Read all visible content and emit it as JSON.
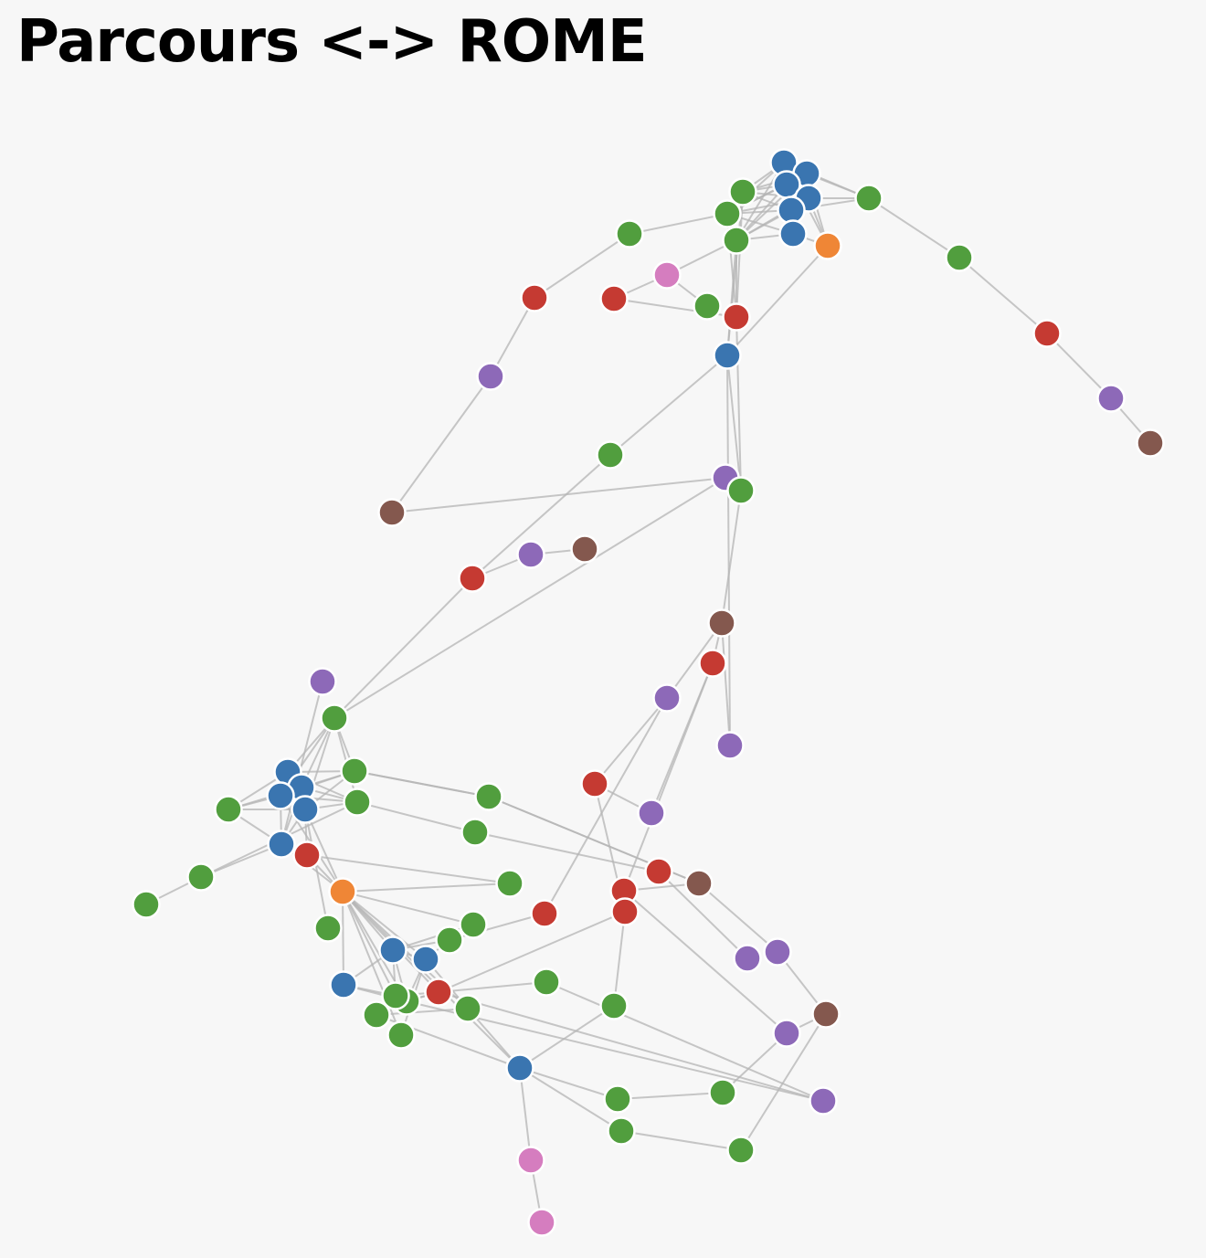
{
  "title": "Parcours <-> ROME",
  "palette": {
    "blue": "#3a75b0",
    "green": "#519e3e",
    "red": "#c53a32",
    "purple": "#8d69b8",
    "brown": "#84584e",
    "orange": "#ef8636",
    "pink": "#d57dbf"
  },
  "graph": {
    "nodes": [
      {
        "id": "n0",
        "color": "blue"
      },
      {
        "id": "n1",
        "color": "blue"
      },
      {
        "id": "n2",
        "color": "blue"
      },
      {
        "id": "n3",
        "color": "blue"
      },
      {
        "id": "n4",
        "color": "blue"
      },
      {
        "id": "n5",
        "color": "blue"
      },
      {
        "id": "n6",
        "color": "green"
      },
      {
        "id": "n7",
        "color": "green"
      },
      {
        "id": "n8",
        "color": "green"
      },
      {
        "id": "n9",
        "color": "orange"
      },
      {
        "id": "n10",
        "color": "green"
      },
      {
        "id": "n11",
        "color": "green"
      },
      {
        "id": "n12",
        "color": "red"
      },
      {
        "id": "n13",
        "color": "purple"
      },
      {
        "id": "n14",
        "color": "brown"
      },
      {
        "id": "n15",
        "color": "green"
      },
      {
        "id": "n16",
        "color": "pink"
      },
      {
        "id": "n17",
        "color": "red"
      },
      {
        "id": "n18",
        "color": "red"
      },
      {
        "id": "n19",
        "color": "purple"
      },
      {
        "id": "n20",
        "color": "green"
      },
      {
        "id": "n21",
        "color": "red"
      },
      {
        "id": "n22",
        "color": "blue"
      },
      {
        "id": "n23",
        "color": "green"
      },
      {
        "id": "n24",
        "color": "purple"
      },
      {
        "id": "n25",
        "color": "brown"
      },
      {
        "id": "n26",
        "color": "red"
      },
      {
        "id": "n27",
        "color": "purple"
      },
      {
        "id": "n28",
        "color": "brown"
      },
      {
        "id": "n29",
        "color": "green"
      },
      {
        "id": "n30",
        "color": "purple"
      },
      {
        "id": "n31",
        "color": "brown"
      },
      {
        "id": "n32",
        "color": "red"
      },
      {
        "id": "n33",
        "color": "purple"
      },
      {
        "id": "n34",
        "color": "purple"
      },
      {
        "id": "n35",
        "color": "green"
      },
      {
        "id": "n36",
        "color": "blue"
      },
      {
        "id": "n37",
        "color": "blue"
      },
      {
        "id": "n38",
        "color": "blue"
      },
      {
        "id": "n39",
        "color": "blue"
      },
      {
        "id": "n40",
        "color": "green"
      },
      {
        "id": "n41",
        "color": "green"
      },
      {
        "id": "n42",
        "color": "blue"
      },
      {
        "id": "n43",
        "color": "green"
      },
      {
        "id": "n44",
        "color": "green"
      },
      {
        "id": "n45",
        "color": "green"
      },
      {
        "id": "n46",
        "color": "red"
      },
      {
        "id": "n47",
        "color": "purple"
      },
      {
        "id": "n48",
        "color": "green"
      },
      {
        "id": "n49",
        "color": "green"
      },
      {
        "id": "n50",
        "color": "orange"
      },
      {
        "id": "n51",
        "color": "green"
      },
      {
        "id": "n52",
        "color": "red"
      },
      {
        "id": "n53",
        "color": "red"
      },
      {
        "id": "n54",
        "color": "red"
      },
      {
        "id": "n55",
        "color": "red"
      },
      {
        "id": "n56",
        "color": "brown"
      },
      {
        "id": "n57",
        "color": "green"
      },
      {
        "id": "n58",
        "color": "green"
      },
      {
        "id": "n59",
        "color": "green"
      },
      {
        "id": "n60",
        "color": "blue"
      },
      {
        "id": "n61",
        "color": "blue"
      },
      {
        "id": "n62",
        "color": "red"
      },
      {
        "id": "n63",
        "color": "purple"
      },
      {
        "id": "n64",
        "color": "purple"
      },
      {
        "id": "n65",
        "color": "purple"
      },
      {
        "id": "n66",
        "color": "brown"
      },
      {
        "id": "n67",
        "color": "blue"
      },
      {
        "id": "n68",
        "color": "green"
      },
      {
        "id": "n69",
        "color": "green"
      },
      {
        "id": "n70",
        "color": "green"
      },
      {
        "id": "n71",
        "color": "green"
      },
      {
        "id": "n72",
        "color": "green"
      },
      {
        "id": "n73",
        "color": "green"
      },
      {
        "id": "n74",
        "color": "red"
      },
      {
        "id": "n75",
        "color": "red"
      },
      {
        "id": "n76",
        "color": "purple"
      },
      {
        "id": "n77",
        "color": "green"
      },
      {
        "id": "n78",
        "color": "blue"
      },
      {
        "id": "n79",
        "color": "green"
      },
      {
        "id": "n80",
        "color": "green"
      },
      {
        "id": "n81",
        "color": "green"
      },
      {
        "id": "n82",
        "color": "green"
      },
      {
        "id": "n83",
        "color": "red"
      },
      {
        "id": "n84",
        "color": "pink"
      }
    ],
    "links": [
      [
        "n0",
        "n1"
      ],
      [
        "n0",
        "n2"
      ],
      [
        "n0",
        "n3"
      ],
      [
        "n0",
        "n4"
      ],
      [
        "n0",
        "n5"
      ],
      [
        "n1",
        "n3"
      ],
      [
        "n2",
        "n4"
      ],
      [
        "n3",
        "n4"
      ],
      [
        "n4",
        "n5"
      ],
      [
        "n2",
        "n5"
      ],
      [
        "n1",
        "n2"
      ],
      [
        "n0",
        "n6"
      ],
      [
        "n1",
        "n6"
      ],
      [
        "n2",
        "n6"
      ],
      [
        "n3",
        "n6"
      ],
      [
        "n4",
        "n6"
      ],
      [
        "n0",
        "n7"
      ],
      [
        "n1",
        "n7"
      ],
      [
        "n2",
        "n7"
      ],
      [
        "n3",
        "n7"
      ],
      [
        "n4",
        "n7"
      ],
      [
        "n5",
        "n7"
      ],
      [
        "n0",
        "n8"
      ],
      [
        "n1",
        "n8"
      ],
      [
        "n2",
        "n8"
      ],
      [
        "n3",
        "n8"
      ],
      [
        "n4",
        "n8"
      ],
      [
        "n5",
        "n8"
      ],
      [
        "n0",
        "n9"
      ],
      [
        "n1",
        "n9"
      ],
      [
        "n3",
        "n9"
      ],
      [
        "n5",
        "n9"
      ],
      [
        "n0",
        "n10"
      ],
      [
        "n1",
        "n10"
      ],
      [
        "n3",
        "n10"
      ],
      [
        "n4",
        "n10"
      ],
      [
        "n10",
        "n11"
      ],
      [
        "n11",
        "n12"
      ],
      [
        "n12",
        "n13"
      ],
      [
        "n13",
        "n14"
      ],
      [
        "n7",
        "n15"
      ],
      [
        "n15",
        "n17"
      ],
      [
        "n17",
        "n19"
      ],
      [
        "n19",
        "n25"
      ],
      [
        "n25",
        "n24"
      ],
      [
        "n8",
        "n16"
      ],
      [
        "n16",
        "n18"
      ],
      [
        "n18",
        "n21"
      ],
      [
        "n16",
        "n20"
      ],
      [
        "n9",
        "n22"
      ],
      [
        "n22",
        "n23"
      ],
      [
        "n23",
        "n26"
      ],
      [
        "n26",
        "n27"
      ],
      [
        "n27",
        "n28"
      ],
      [
        "n8",
        "n21"
      ],
      [
        "n6",
        "n21"
      ],
      [
        "n7",
        "n21"
      ],
      [
        "n8",
        "n22"
      ],
      [
        "n6",
        "n22"
      ],
      [
        "n22",
        "n29"
      ],
      [
        "n21",
        "n29"
      ],
      [
        "n22",
        "n30"
      ],
      [
        "n29",
        "n31"
      ],
      [
        "n30",
        "n31"
      ],
      [
        "n31",
        "n32"
      ],
      [
        "n31",
        "n33"
      ],
      [
        "n32",
        "n34"
      ],
      [
        "n32",
        "n62"
      ],
      [
        "n34",
        "n53"
      ],
      [
        "n33",
        "n53"
      ],
      [
        "n33",
        "n54"
      ],
      [
        "n53",
        "n75"
      ],
      [
        "n26",
        "n35"
      ],
      [
        "n24",
        "n35"
      ],
      [
        "n35",
        "n36"
      ],
      [
        "n35",
        "n37"
      ],
      [
        "n35",
        "n38"
      ],
      [
        "n35",
        "n39"
      ],
      [
        "n35",
        "n40"
      ],
      [
        "n35",
        "n41"
      ],
      [
        "n36",
        "n37"
      ],
      [
        "n36",
        "n38"
      ],
      [
        "n37",
        "n39"
      ],
      [
        "n38",
        "n39"
      ],
      [
        "n39",
        "n42"
      ],
      [
        "n38",
        "n42"
      ],
      [
        "n37",
        "n42"
      ],
      [
        "n36",
        "n40"
      ],
      [
        "n37",
        "n40"
      ],
      [
        "n38",
        "n40"
      ],
      [
        "n39",
        "n40"
      ],
      [
        "n36",
        "n41"
      ],
      [
        "n37",
        "n41"
      ],
      [
        "n38",
        "n41"
      ],
      [
        "n39",
        "n41"
      ],
      [
        "n36",
        "n43"
      ],
      [
        "n37",
        "n43"
      ],
      [
        "n38",
        "n43"
      ],
      [
        "n39",
        "n43"
      ],
      [
        "n42",
        "n43"
      ],
      [
        "n41",
        "n44"
      ],
      [
        "n44",
        "n45"
      ],
      [
        "n42",
        "n44"
      ],
      [
        "n40",
        "n46"
      ],
      [
        "n40",
        "n49"
      ],
      [
        "n41",
        "n48"
      ],
      [
        "n42",
        "n47"
      ],
      [
        "n42",
        "n50"
      ],
      [
        "n38",
        "n50"
      ],
      [
        "n39",
        "n50"
      ],
      [
        "n39",
        "n51"
      ],
      [
        "n39",
        "n52"
      ],
      [
        "n42",
        "n52"
      ],
      [
        "n48",
        "n55"
      ],
      [
        "n55",
        "n63"
      ],
      [
        "n49",
        "n56"
      ],
      [
        "n46",
        "n56"
      ],
      [
        "n56",
        "n62"
      ],
      [
        "n56",
        "n64"
      ],
      [
        "n62",
        "n65"
      ],
      [
        "n64",
        "n66"
      ],
      [
        "n65",
        "n66"
      ],
      [
        "n50",
        "n57"
      ],
      [
        "n50",
        "n58"
      ],
      [
        "n50",
        "n60"
      ],
      [
        "n50",
        "n61"
      ],
      [
        "n50",
        "n67"
      ],
      [
        "n50",
        "n80"
      ],
      [
        "n50",
        "n79"
      ],
      [
        "n50",
        "n82"
      ],
      [
        "n50",
        "n81"
      ],
      [
        "n50",
        "n78"
      ],
      [
        "n60",
        "n59"
      ],
      [
        "n60",
        "n58"
      ],
      [
        "n60",
        "n61"
      ],
      [
        "n61",
        "n59"
      ],
      [
        "n60",
        "n79"
      ],
      [
        "n61",
        "n79"
      ],
      [
        "n67",
        "n79"
      ],
      [
        "n67",
        "n80"
      ],
      [
        "n67",
        "n60"
      ],
      [
        "n61",
        "n81"
      ],
      [
        "n61",
        "n82"
      ],
      [
        "n60",
        "n80"
      ],
      [
        "n59",
        "n54"
      ],
      [
        "n79",
        "n83"
      ],
      [
        "n80",
        "n83"
      ],
      [
        "n83",
        "n75"
      ],
      [
        "n57",
        "n52"
      ],
      [
        "n52",
        "n74"
      ],
      [
        "n79",
        "n74"
      ],
      [
        "n79",
        "n76"
      ],
      [
        "n76",
        "n73"
      ],
      [
        "n73",
        "n74"
      ],
      [
        "n83",
        "n76"
      ],
      [
        "n82",
        "n77"
      ],
      [
        "n82",
        "n78"
      ],
      [
        "n78",
        "n77"
      ],
      [
        "n78",
        "n68"
      ],
      [
        "n68",
        "n75"
      ],
      [
        "n78",
        "n69"
      ],
      [
        "n78",
        "n70"
      ],
      [
        "n69",
        "n71"
      ],
      [
        "n71",
        "n65"
      ],
      [
        "n70",
        "n72"
      ],
      [
        "n72",
        "n66"
      ],
      [
        "n78",
        "n84"
      ],
      [
        "n84",
        "n85"
      ]
    ]
  }
}
